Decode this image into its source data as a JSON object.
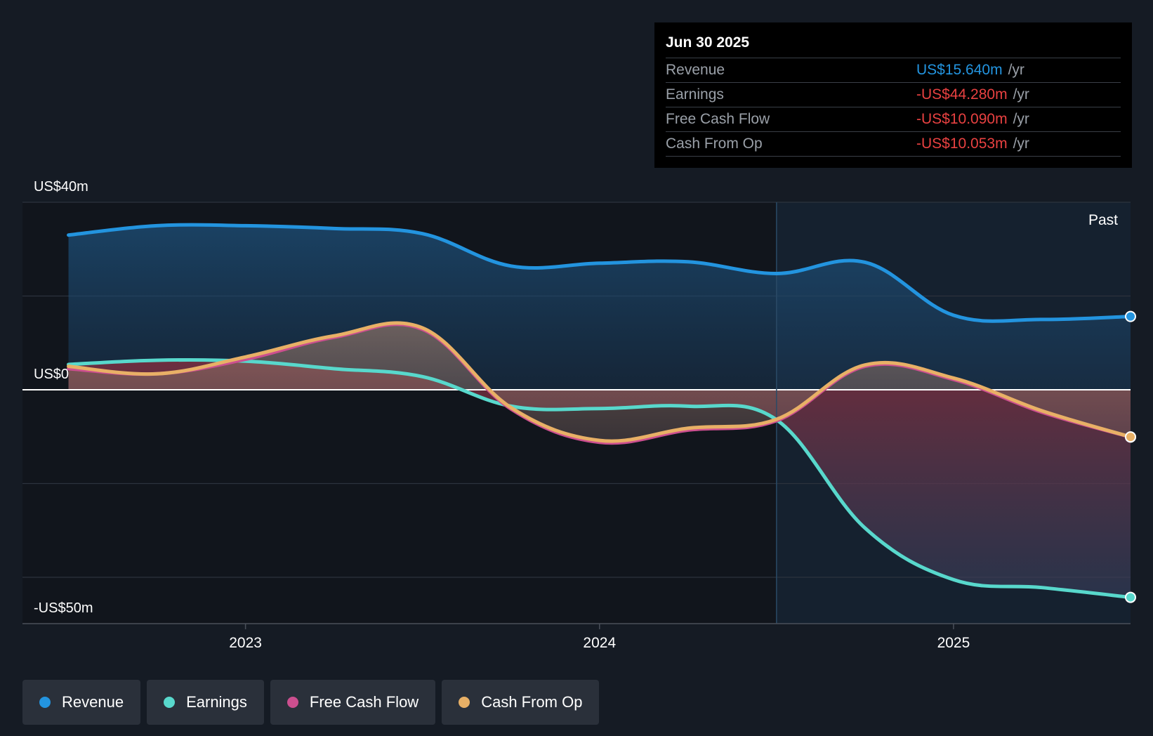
{
  "chart_data": {
    "type": "line",
    "y_unit": "US$ millions",
    "ylim": [
      -50,
      40
    ],
    "y_tick_labels": [
      {
        "value": 40,
        "label": "US$40m"
      },
      {
        "value": 0,
        "label": "US$0"
      },
      {
        "value": -50,
        "label": "-US$50m"
      }
    ],
    "x_ticks": [
      {
        "value": 2023.0,
        "label": "2023"
      },
      {
        "value": 2024.0,
        "label": "2024"
      },
      {
        "value": 2025.0,
        "label": "2025"
      }
    ],
    "xlim": [
      2022.37,
      2025.5
    ],
    "past_divider_x": 2024.5,
    "past_label": "Past",
    "series": [
      {
        "name": "Revenue",
        "color": "#2394df",
        "x": [
          2022.5,
          2022.75,
          2023.0,
          2023.25,
          2023.5,
          2023.75,
          2024.0,
          2024.25,
          2024.5,
          2024.75,
          2025.0,
          2025.25,
          2025.5
        ],
        "values": [
          33.0,
          35.0,
          35.0,
          34.4,
          33.3,
          26.4,
          27.0,
          27.3,
          24.8,
          27.2,
          15.9,
          15.0,
          15.64
        ]
      },
      {
        "name": "Earnings",
        "color": "#58d8cc",
        "x": [
          2022.5,
          2022.75,
          2023.0,
          2023.25,
          2023.5,
          2023.75,
          2024.0,
          2024.25,
          2024.5,
          2024.75,
          2025.0,
          2025.25,
          2025.5
        ],
        "values": [
          5.4,
          6.3,
          6.1,
          4.5,
          2.8,
          -3.5,
          -4.0,
          -3.5,
          -6.4,
          -29.5,
          -40.5,
          -42.2,
          -44.28
        ]
      },
      {
        "name": "Free Cash Flow",
        "color": "#cc4f8f",
        "x": [
          2022.5,
          2022.75,
          2023.0,
          2023.25,
          2023.5,
          2023.75,
          2024.0,
          2024.25,
          2024.5,
          2024.75,
          2025.0,
          2025.25,
          2025.5
        ],
        "values": [
          4.5,
          3.4,
          6.5,
          11.2,
          12.9,
          -4.1,
          -11.2,
          -8.6,
          -6.6,
          5.0,
          2.2,
          -4.8,
          -10.09
        ]
      },
      {
        "name": "Cash From Op",
        "color": "#e8b066",
        "x": [
          2022.5,
          2022.75,
          2023.0,
          2023.25,
          2023.5,
          2023.75,
          2024.0,
          2024.25,
          2024.5,
          2024.75,
          2025.0,
          2025.25,
          2025.5
        ],
        "values": [
          5.0,
          3.4,
          7.0,
          11.5,
          13.2,
          -3.8,
          -10.8,
          -8.2,
          -6.3,
          5.3,
          2.5,
          -4.5,
          -10.053
        ]
      }
    ]
  },
  "tooltip": {
    "date": "Jun 30 2025",
    "rows": [
      {
        "label": "Revenue",
        "value": "US$15.640m",
        "unit": "/yr",
        "color": "#2394df"
      },
      {
        "label": "Earnings",
        "value": "-US$44.280m",
        "unit": "/yr",
        "color": "#e84141"
      },
      {
        "label": "Free Cash Flow",
        "value": "-US$10.090m",
        "unit": "/yr",
        "color": "#e84141"
      },
      {
        "label": "Cash From Op",
        "value": "-US$10.053m",
        "unit": "/yr",
        "color": "#e84141"
      }
    ]
  },
  "legend": [
    {
      "label": "Revenue",
      "color": "#2394df"
    },
    {
      "label": "Earnings",
      "color": "#58d8cc"
    },
    {
      "label": "Free Cash Flow",
      "color": "#cc4f8f"
    },
    {
      "label": "Cash From Op",
      "color": "#e8b066"
    }
  ]
}
